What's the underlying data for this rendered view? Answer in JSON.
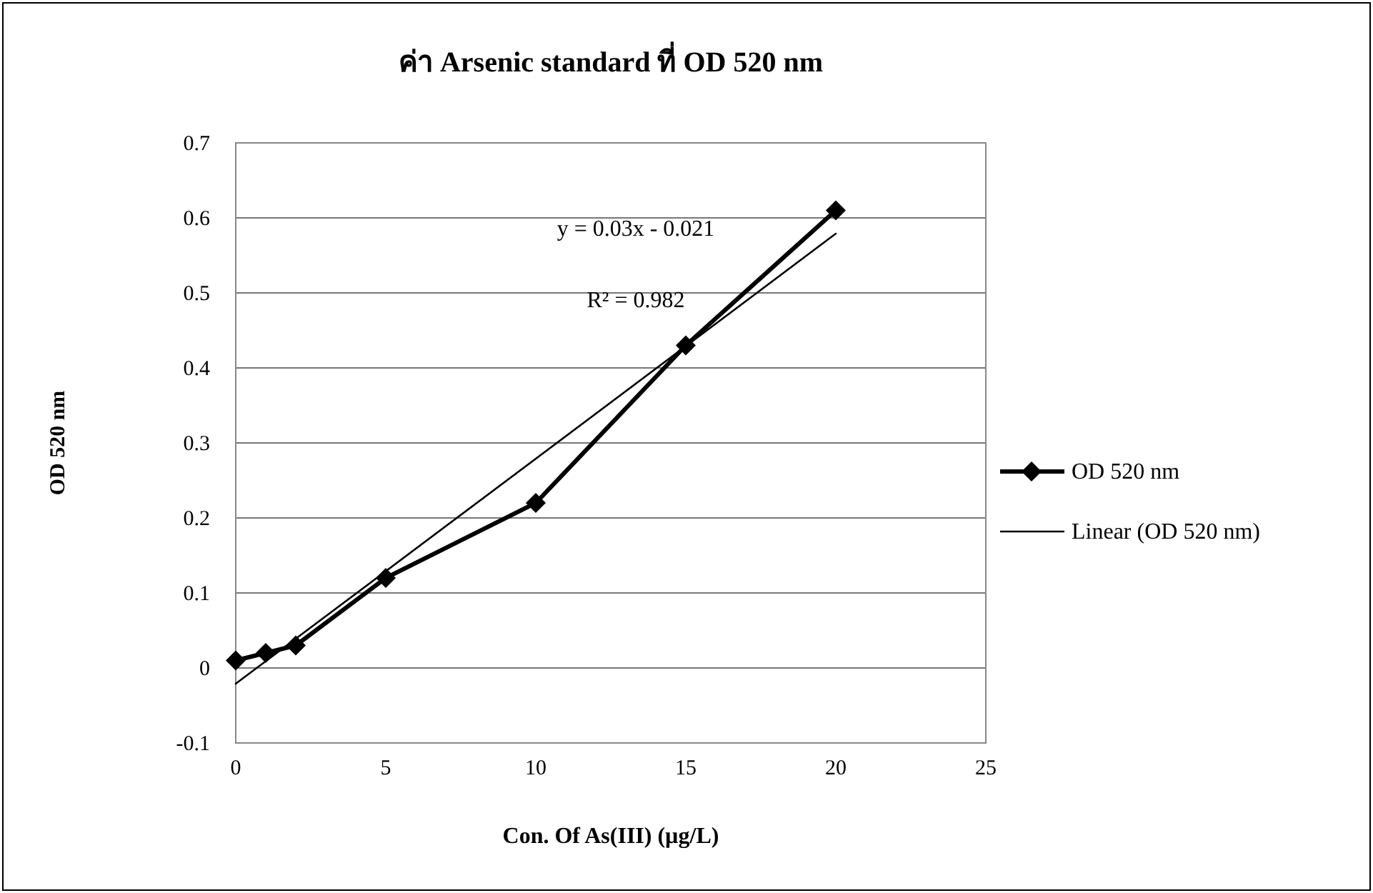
{
  "chart_data": {
    "type": "line",
    "title": "ค่า Arsenic standard ที่ OD 520 nm",
    "xlabel": "Con. Of As(III) (µg/L)",
    "ylabel": "OD 520 nm",
    "annotations": [
      "y = 0.03x - 0.021",
      "R² = 0.982"
    ],
    "series": [
      {
        "name": "OD 520 nm",
        "color": "#000000",
        "x": [
          0,
          1,
          2,
          5,
          10,
          15,
          20
        ],
        "values": [
          0.01,
          0.02,
          0.03,
          0.12,
          0.22,
          0.43,
          0.61
        ],
        "marker": "diamond",
        "line_style": "solid"
      },
      {
        "name": "Linear (OD 520 nm)",
        "color": "#000000",
        "x": [
          0,
          20
        ],
        "values": [
          -0.021,
          0.579
        ],
        "marker": "none",
        "line_style": "solid"
      }
    ],
    "xlim": [
      0,
      25
    ],
    "xticks": [
      0,
      5,
      10,
      15,
      20,
      25
    ],
    "ylim": [
      -0.1,
      0.7
    ],
    "yticks": [
      -0.1,
      0,
      0.1,
      0.2,
      0.3,
      0.4,
      0.5,
      0.6,
      0.7
    ],
    "grid": "y",
    "legend": "right"
  }
}
